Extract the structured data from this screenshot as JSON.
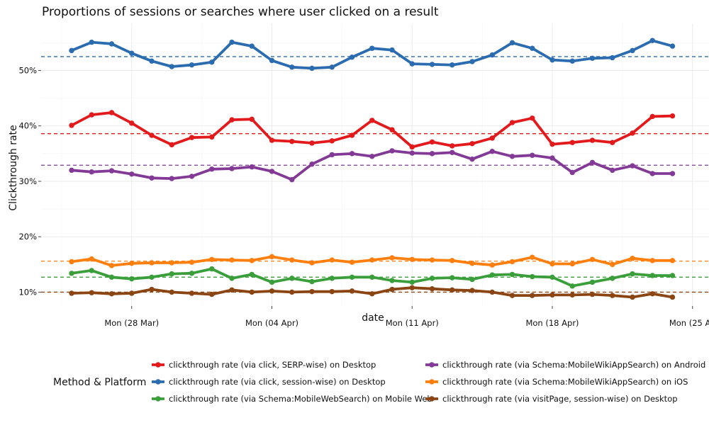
{
  "chart_data": {
    "type": "line",
    "title": "Proportions of sessions or searches where user clicked on a result",
    "xlabel": "date",
    "ylabel": "Clickthrough rate",
    "x_tick_labels": [
      "Mon (28 Mar)",
      "Mon (04 Apr)",
      "Mon (11 Apr)",
      "Mon (18 Apr)",
      "Mon (25 Ap"
    ],
    "y_tick_labels": [
      "10%",
      "20%",
      "30%",
      "40%",
      "50%"
    ],
    "y_ticks": [
      10,
      20,
      30,
      40,
      50
    ],
    "ylim": [
      7.5,
      58.5
    ],
    "grid": true,
    "legend_title": "Method & Platform",
    "legend_position": "bottom",
    "x": [
      "03-25",
      "03-26",
      "03-27",
      "03-28",
      "03-29",
      "03-30",
      "03-31",
      "04-01",
      "04-02",
      "04-03",
      "04-04",
      "04-05",
      "04-06",
      "04-07",
      "04-08",
      "04-09",
      "04-10",
      "04-11",
      "04-12",
      "04-13",
      "04-14",
      "04-15",
      "04-16",
      "04-17",
      "04-18",
      "04-19",
      "04-20",
      "04-21",
      "04-22",
      "04-23",
      "04-24"
    ],
    "series": [
      {
        "name": "clickthrough rate (via click, SERP-wise) on Desktop",
        "color": "#e31a1c",
        "mean": 38.6,
        "values": [
          40.1,
          42.0,
          42.4,
          40.5,
          38.3,
          36.6,
          37.9,
          38.0,
          41.1,
          41.2,
          37.4,
          37.2,
          36.9,
          37.3,
          38.3,
          41.0,
          39.3,
          36.2,
          37.1,
          36.4,
          36.8,
          37.8,
          40.6,
          41.4,
          36.7,
          37.0,
          37.4,
          37.0,
          38.7,
          41.7,
          41.8
        ]
      },
      {
        "name": "clickthrough rate (via click, session-wise) on Desktop",
        "color": "#2b6cb0",
        "mean": 52.5,
        "values": [
          53.6,
          55.1,
          54.8,
          53.1,
          51.7,
          50.7,
          51.0,
          51.5,
          55.1,
          54.4,
          51.8,
          50.6,
          50.4,
          50.6,
          52.4,
          54.0,
          53.7,
          51.2,
          51.1,
          51.0,
          51.6,
          52.8,
          55.0,
          54.0,
          51.9,
          51.7,
          52.2,
          52.3,
          53.6,
          55.4,
          54.4
        ]
      },
      {
        "name": "clickthrough rate (via Schema:MobileWebSearch) on Mobile Web",
        "color": "#3a9e3a",
        "mean": 12.7,
        "values": [
          13.4,
          13.9,
          12.7,
          12.4,
          12.7,
          13.3,
          13.4,
          14.2,
          12.5,
          13.2,
          11.8,
          12.5,
          11.9,
          12.5,
          12.7,
          12.7,
          12.1,
          11.8,
          12.5,
          12.6,
          12.3,
          13.1,
          13.2,
          12.8,
          12.7,
          11.1,
          11.8,
          12.5,
          13.3,
          13.0,
          13.0
        ]
      },
      {
        "name": "clickthrough rate (via Schema:MobileWikiAppSearch) on Android",
        "color": "#833a96",
        "mean": 32.9,
        "values": [
          32.0,
          31.7,
          31.9,
          31.3,
          30.6,
          30.5,
          30.9,
          32.2,
          32.3,
          32.6,
          31.8,
          30.3,
          33.1,
          34.8,
          35.0,
          34.5,
          35.5,
          35.1,
          35.0,
          35.2,
          34.0,
          35.4,
          34.5,
          34.7,
          34.2,
          31.6,
          33.4,
          32.0,
          32.8,
          31.4,
          31.4
        ]
      },
      {
        "name": "clickthrough rate (via Schema:MobileWikiAppSearch) on iOS",
        "color": "#ff7f0e",
        "mean": 15.6,
        "values": [
          15.5,
          16.0,
          14.8,
          15.2,
          15.3,
          15.3,
          15.4,
          15.9,
          15.8,
          15.7,
          16.4,
          15.8,
          15.3,
          15.8,
          15.4,
          15.8,
          16.2,
          15.9,
          15.8,
          15.7,
          15.2,
          14.9,
          15.5,
          16.3,
          15.1,
          15.1,
          15.9,
          15.0,
          16.1,
          15.7,
          15.7
        ]
      },
      {
        "name": "clickthrough rate (via visitPage, session-wise) on Desktop",
        "color": "#8b4513",
        "mean": 10.0,
        "values": [
          9.8,
          9.9,
          9.7,
          9.8,
          10.5,
          10.0,
          9.8,
          9.6,
          10.4,
          10.0,
          10.2,
          10.0,
          10.1,
          10.1,
          10.2,
          9.7,
          10.5,
          10.8,
          10.6,
          10.4,
          10.3,
          10.0,
          9.4,
          9.4,
          9.5,
          9.5,
          9.6,
          9.4,
          9.1,
          9.7,
          9.1
        ]
      }
    ]
  }
}
